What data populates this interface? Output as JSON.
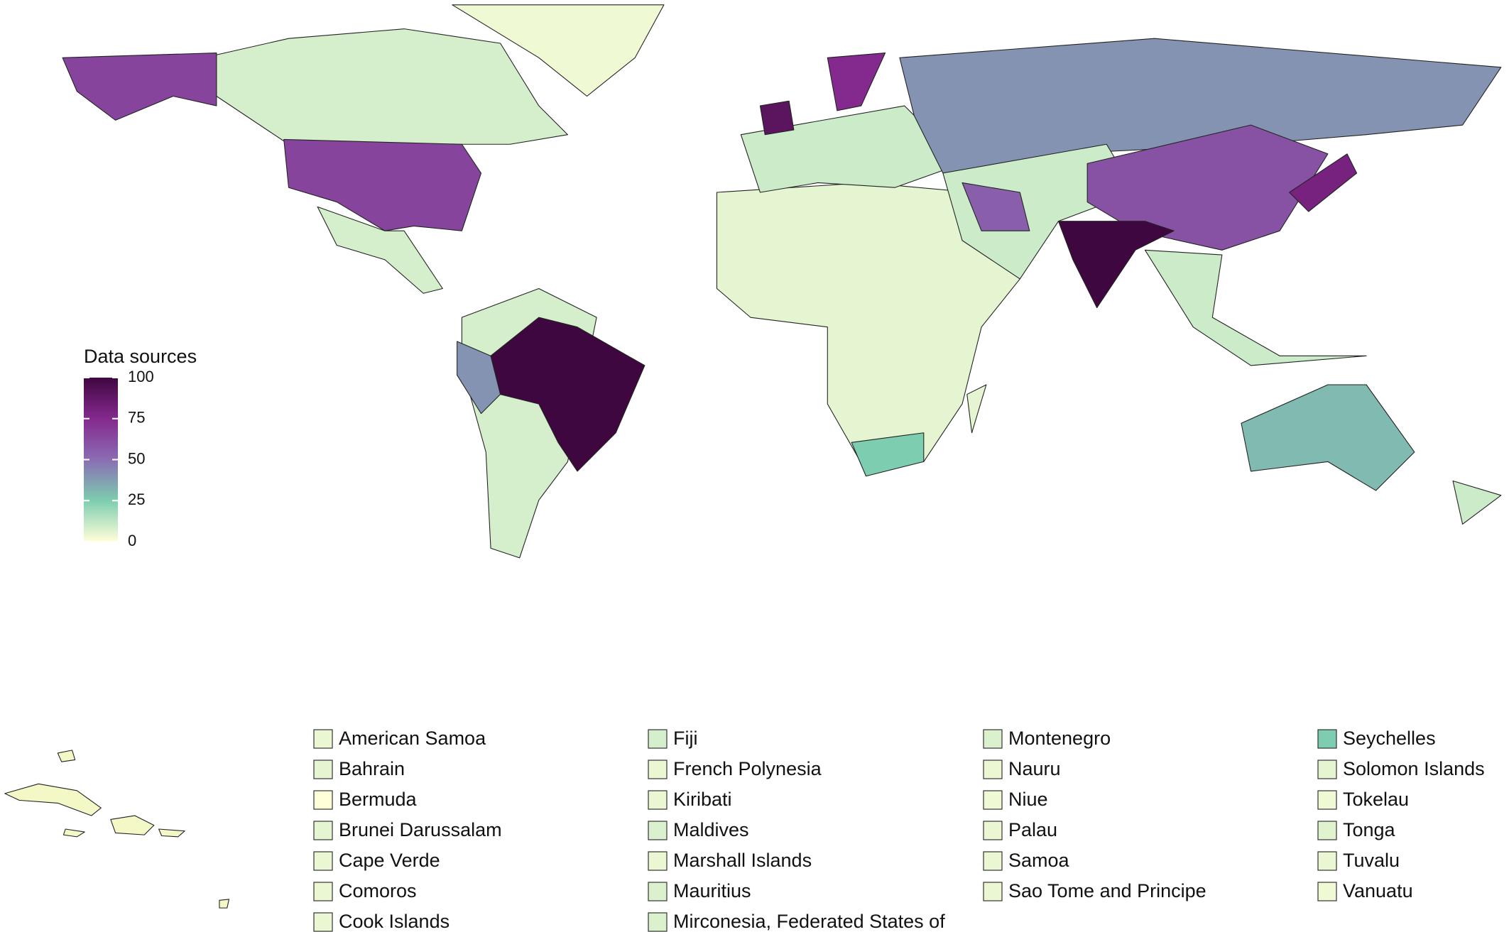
{
  "map": {
    "legend": {
      "title": "Data sources",
      "ticks": [
        0,
        25,
        50,
        75,
        100
      ],
      "colors": [
        "#ffffd9",
        "#7dcdb0",
        "#8a6db3",
        "#84298e",
        "#3f0740"
      ]
    },
    "regions": [
      8,
      3,
      65,
      65,
      8,
      8,
      100,
      40,
      5,
      25,
      10,
      90,
      75,
      40,
      10,
      55,
      60,
      100,
      10,
      80,
      30,
      10,
      5
    ],
    "small_countries": [
      {
        "name": "American Samoa",
        "value": 4
      },
      {
        "name": "Bahrain",
        "value": 5
      },
      {
        "name": "Bermuda",
        "value": 0
      },
      {
        "name": "Brunei Darussalam",
        "value": 5
      },
      {
        "name": "Cape Verde",
        "value": 4
      },
      {
        "name": "Comoros",
        "value": 4
      },
      {
        "name": "Cook Islands",
        "value": 4
      },
      {
        "name": "Fiji",
        "value": 8
      },
      {
        "name": "French Polynesia",
        "value": 4
      },
      {
        "name": "Kiribati",
        "value": 4
      },
      {
        "name": "Maldives",
        "value": 7
      },
      {
        "name": "Marshall Islands",
        "value": 4
      },
      {
        "name": "Mauritius",
        "value": 7
      },
      {
        "name": "Mirconesia, Federated States of",
        "value": 7
      },
      {
        "name": "Montenegro",
        "value": 7
      },
      {
        "name": "Nauru",
        "value": 4
      },
      {
        "name": "Niue",
        "value": 3
      },
      {
        "name": "Palau",
        "value": 4
      },
      {
        "name": "Samoa",
        "value": 4
      },
      {
        "name": "Sao Tome and Principe",
        "value": 4
      },
      {
        "name": "Seychelles",
        "value": 25
      },
      {
        "name": "Solomon Islands",
        "value": 5
      },
      {
        "name": "Tokelau",
        "value": 3
      },
      {
        "name": "Tonga",
        "value": 6
      },
      {
        "name": "Tuvalu",
        "value": 4
      },
      {
        "name": "Vanuatu",
        "value": 3
      }
    ]
  }
}
